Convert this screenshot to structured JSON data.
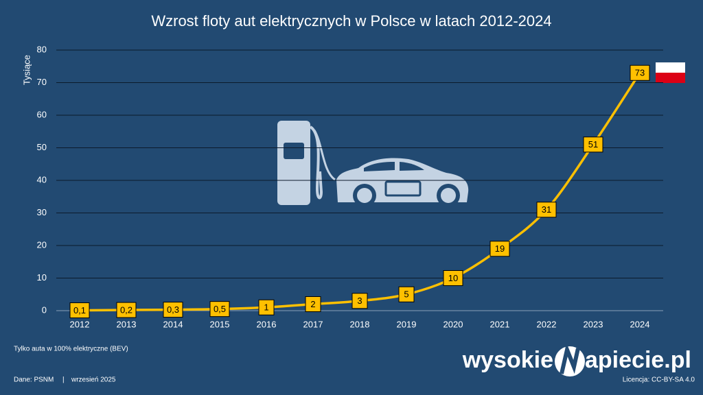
{
  "chart_data": {
    "type": "line",
    "title": "Wzrost floty aut elektrycznych w Polsce w latach 2012-2024",
    "y_label": "Tysiące",
    "categories": [
      "2012",
      "2013",
      "2014",
      "2015",
      "2016",
      "2017",
      "2018",
      "2019",
      "2020",
      "2021",
      "2022",
      "2023",
      "2024"
    ],
    "values": [
      0.1,
      0.2,
      0.3,
      0.5,
      1,
      2,
      3,
      5,
      10,
      19,
      31,
      51,
      73
    ],
    "value_labels": [
      "0,1",
      "0,2",
      "0,3",
      "0,5",
      "1",
      "2",
      "3",
      "5",
      "10",
      "19",
      "31",
      "51",
      "73"
    ],
    "color": "#ffc000",
    "ylim": [
      0,
      80
    ],
    "yticks": [
      0,
      10,
      20,
      30,
      40,
      50,
      60,
      70,
      80
    ],
    "grid": true,
    "note": "Tylko auta w 100% elektryczne (BEV)",
    "source": "Dane: PSNM",
    "separator": "|",
    "date": "wrzesień 2025",
    "logo": [
      "wysokie",
      "apiecie.pl"
    ],
    "license": "Licencja: CC-BY-SA 4.0"
  }
}
